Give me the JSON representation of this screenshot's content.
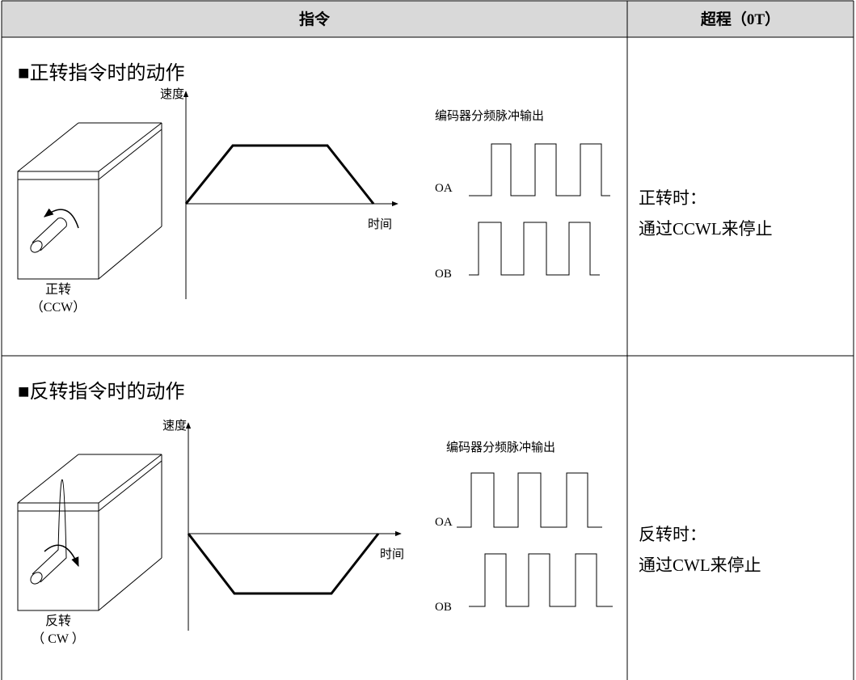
{
  "table": {
    "header": [
      "指令",
      "超程（0T）"
    ],
    "rows": [
      {
        "title": "■正转指令时的动作",
        "speed_label": "速度",
        "time_label": "时间",
        "encoder_label": "编码器分频脉冲输出",
        "oa": "OA",
        "ob": "OB",
        "motor_label": "正转",
        "motor_sub": "（CCW）",
        "overtravel": [
          "正转时：",
          "通过CCWL来停止"
        ]
      },
      {
        "title": "■反转指令时的动作",
        "speed_label": "速度",
        "time_label": "时间",
        "encoder_label": "编码器分频脉冲输出",
        "oa": "OA",
        "ob": "OB",
        "motor_label": "反转",
        "motor_sub": "（ CW ）",
        "overtravel": [
          "反转时：",
          "通过CWL来停止"
        ]
      }
    ]
  }
}
